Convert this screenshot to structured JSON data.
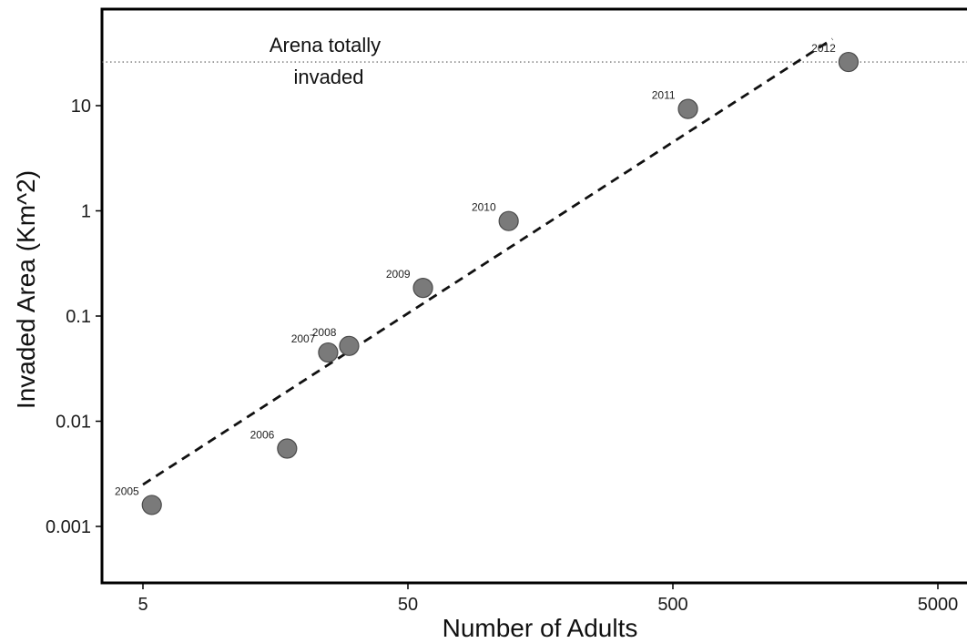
{
  "chart_data": {
    "type": "scatter",
    "xlabel": "Number of Adults",
    "ylabel": "Invaded Area (Km^2)",
    "xscale": "log",
    "yscale": "log",
    "x_ticks": [
      5,
      50,
      500,
      5000
    ],
    "x_tick_labels": [
      "5",
      "50",
      "500",
      "5000"
    ],
    "y_ticks": [
      0.001,
      0.01,
      0.1,
      1,
      10
    ],
    "y_tick_labels": [
      "0.001",
      "0.01",
      "0.1",
      "1",
      "10"
    ],
    "grid": false,
    "points": [
      {
        "label": "2005",
        "x": 5.4,
        "y": 0.0016
      },
      {
        "label": "2006",
        "x": 17.5,
        "y": 0.0055
      },
      {
        "label": "2007",
        "x": 25,
        "y": 0.045
      },
      {
        "label": "2008",
        "x": 30,
        "y": 0.052
      },
      {
        "label": "2009",
        "x": 57,
        "y": 0.185
      },
      {
        "label": "2010",
        "x": 120,
        "y": 0.8
      },
      {
        "label": "2011",
        "x": 570,
        "y": 9.3
      },
      {
        "label": "2012",
        "x": 2300,
        "y": 26
      }
    ],
    "trend_line": {
      "style": "dashed",
      "x": [
        5,
        2000
      ],
      "y": [
        0.0025,
        43
      ]
    },
    "reference_line": {
      "style": "dotted",
      "y": 26,
      "annotation": [
        "Arena totally",
        "invaded"
      ]
    },
    "colors": {
      "point_fill": "#7a7a7a",
      "point_stroke": "#4a4a4a",
      "trend": "#111111",
      "reference": "#555555",
      "frame": "#000000"
    }
  }
}
